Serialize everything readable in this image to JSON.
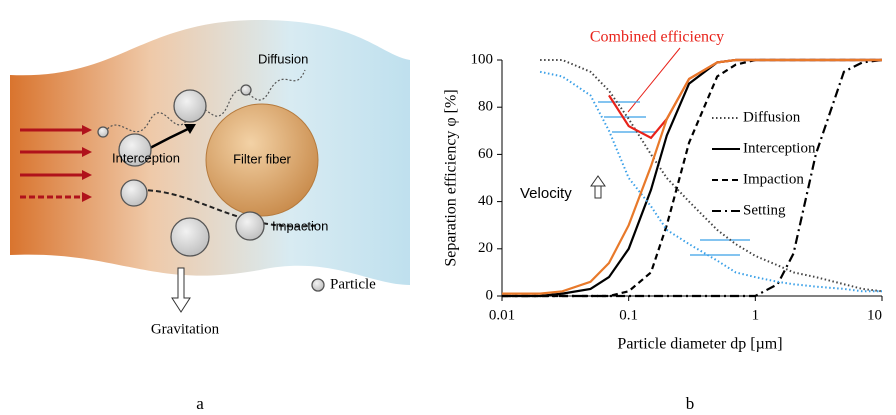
{
  "diagram": {
    "labels": [
      "Diffusion",
      "Interception",
      "Filter fiber",
      "Impaction",
      "Particle",
      "Gravitation"
    ]
  },
  "panel_labels": [
    "a",
    "b"
  ],
  "chart_data": {
    "type": "line",
    "annotation": "Combined efficiency",
    "velocity_label": "Velocity",
    "x_label": "Particle diameter dp [µm]",
    "y_label": "Separation efficiency φ [%]",
    "log_x": true,
    "xlim": [
      0.01,
      10
    ],
    "xticks": [
      0.01,
      0.1,
      1,
      10
    ],
    "ylim": [
      0,
      100
    ],
    "yticks": [
      0,
      20,
      40,
      60,
      80,
      100
    ],
    "x": [
      0.01,
      0.02,
      0.03,
      0.05,
      0.07,
      0.1,
      0.15,
      0.2,
      0.3,
      0.5,
      0.7,
      1,
      1.5,
      2,
      3,
      5,
      7,
      10
    ],
    "series": [
      {
        "name": "Diffusion",
        "color": "#444444",
        "style": "dotted",
        "legend": true,
        "values": [
          null,
          100,
          100,
          95,
          87,
          75,
          60,
          50,
          40,
          28,
          22,
          17,
          13,
          10,
          8,
          5,
          3,
          2
        ]
      },
      {
        "name": "Interception",
        "color": "#000000",
        "style": "solid",
        "legend": true,
        "values": [
          0,
          0,
          1,
          3,
          8,
          20,
          45,
          68,
          90,
          99,
          100,
          100,
          100,
          100,
          100,
          100,
          100,
          100
        ]
      },
      {
        "name": "Impaction",
        "color": "#000000",
        "style": "dashed",
        "legend": true,
        "values": [
          0,
          0,
          0,
          0,
          0,
          2,
          10,
          30,
          65,
          93,
          98,
          100,
          100,
          100,
          100,
          100,
          100,
          100
        ]
      },
      {
        "name": "Setting",
        "color": "#000000",
        "style": "dashdot",
        "legend": true,
        "values": [
          0,
          0,
          0,
          0,
          0,
          0,
          0,
          0,
          0,
          0,
          0,
          0,
          5,
          18,
          60,
          95,
          99,
          100
        ]
      },
      {
        "name": "Combined efficiency",
        "color": "#e8221a",
        "style": "solid",
        "legend": false,
        "values": [
          null,
          null,
          null,
          null,
          85,
          72,
          67,
          75,
          92,
          99,
          100,
          100,
          100,
          100,
          100,
          100,
          100,
          100
        ]
      },
      {
        "color": "#3aa0e8",
        "style": "dotted",
        "legend": false,
        "values": [
          null,
          95,
          93,
          85,
          70,
          50,
          38,
          28,
          22,
          15,
          10,
          8,
          6,
          5,
          4,
          3,
          2,
          2
        ]
      },
      {
        "color": "#e8792a",
        "style": "solid",
        "legend": false,
        "values": [
          1,
          1,
          2,
          6,
          14,
          30,
          55,
          75,
          92,
          99,
          100,
          100,
          100,
          100,
          100,
          100,
          100,
          100
        ]
      }
    ]
  }
}
